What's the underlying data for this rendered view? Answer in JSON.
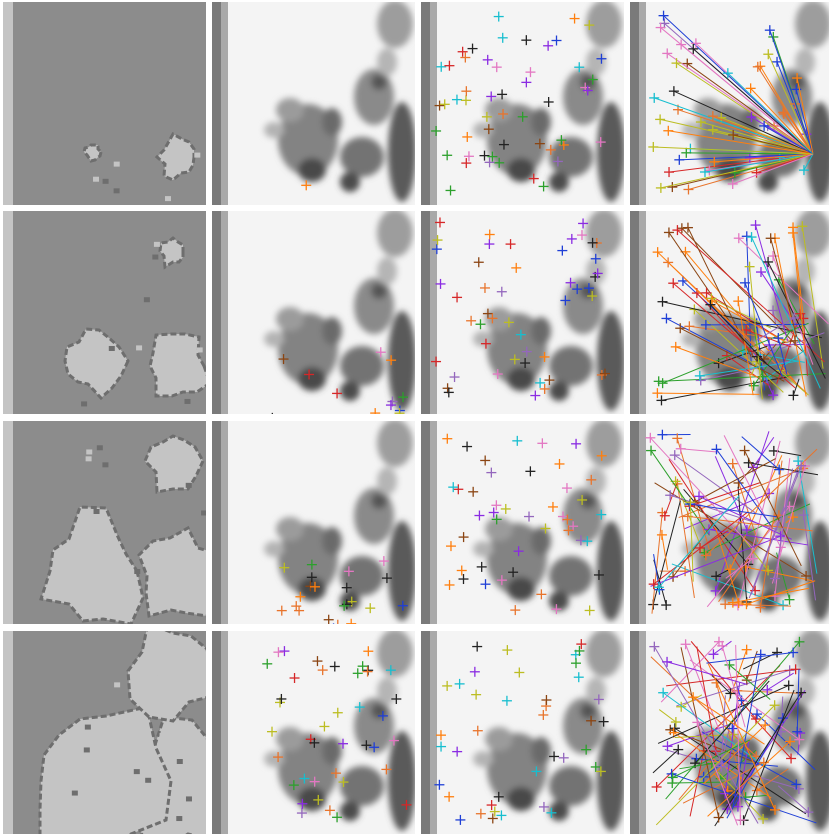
{
  "figure": {
    "rows": 4,
    "columns": 4,
    "column_kinds": [
      "segmentation-mask",
      "keypoints-on-image",
      "random-keypoints",
      "correspondence-lines"
    ]
  },
  "colors": {
    "mask_background": "#8c8c8c",
    "mask_region": "#c4c4c4",
    "mask_boundary": "#6e6e6e",
    "image_background": "#f4f4f4",
    "marker_palette": [
      "#e8742c",
      "#2ca02c",
      "#1f3fd6",
      "#8a2be2",
      "#8b4513",
      "#d62728",
      "#17becf",
      "#bcbd22",
      "#e377c2",
      "#222222",
      "#ff7f0e",
      "#9467bd"
    ]
  }
}
